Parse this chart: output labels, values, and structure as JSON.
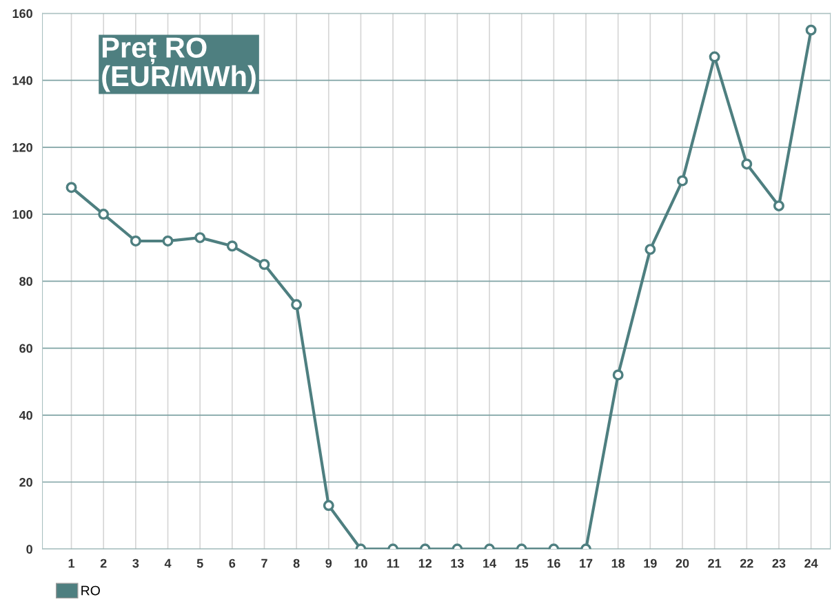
{
  "chart_data": {
    "type": "line",
    "title": "Preț RO\n(EUR/MWh)",
    "categories": [
      "1",
      "2",
      "3",
      "4",
      "5",
      "6",
      "7",
      "8",
      "9",
      "10",
      "11",
      "12",
      "13",
      "14",
      "15",
      "16",
      "17",
      "18",
      "19",
      "20",
      "21",
      "22",
      "23",
      "24"
    ],
    "series": [
      {
        "name": "RO",
        "color": "#4e7f80",
        "values": [
          108,
          100,
          92,
          92,
          93,
          90.5,
          85,
          73,
          13,
          0,
          0,
          0,
          0,
          0,
          0,
          0,
          0,
          52,
          89.5,
          110,
          147,
          115,
          102.5,
          155
        ]
      }
    ],
    "ylim": [
      0,
      160
    ],
    "yticks": [
      0,
      20,
      40,
      60,
      80,
      100,
      120,
      140,
      160
    ],
    "grid": true,
    "legend": "bottom left",
    "marker": "circle",
    "line_style": "solid"
  }
}
